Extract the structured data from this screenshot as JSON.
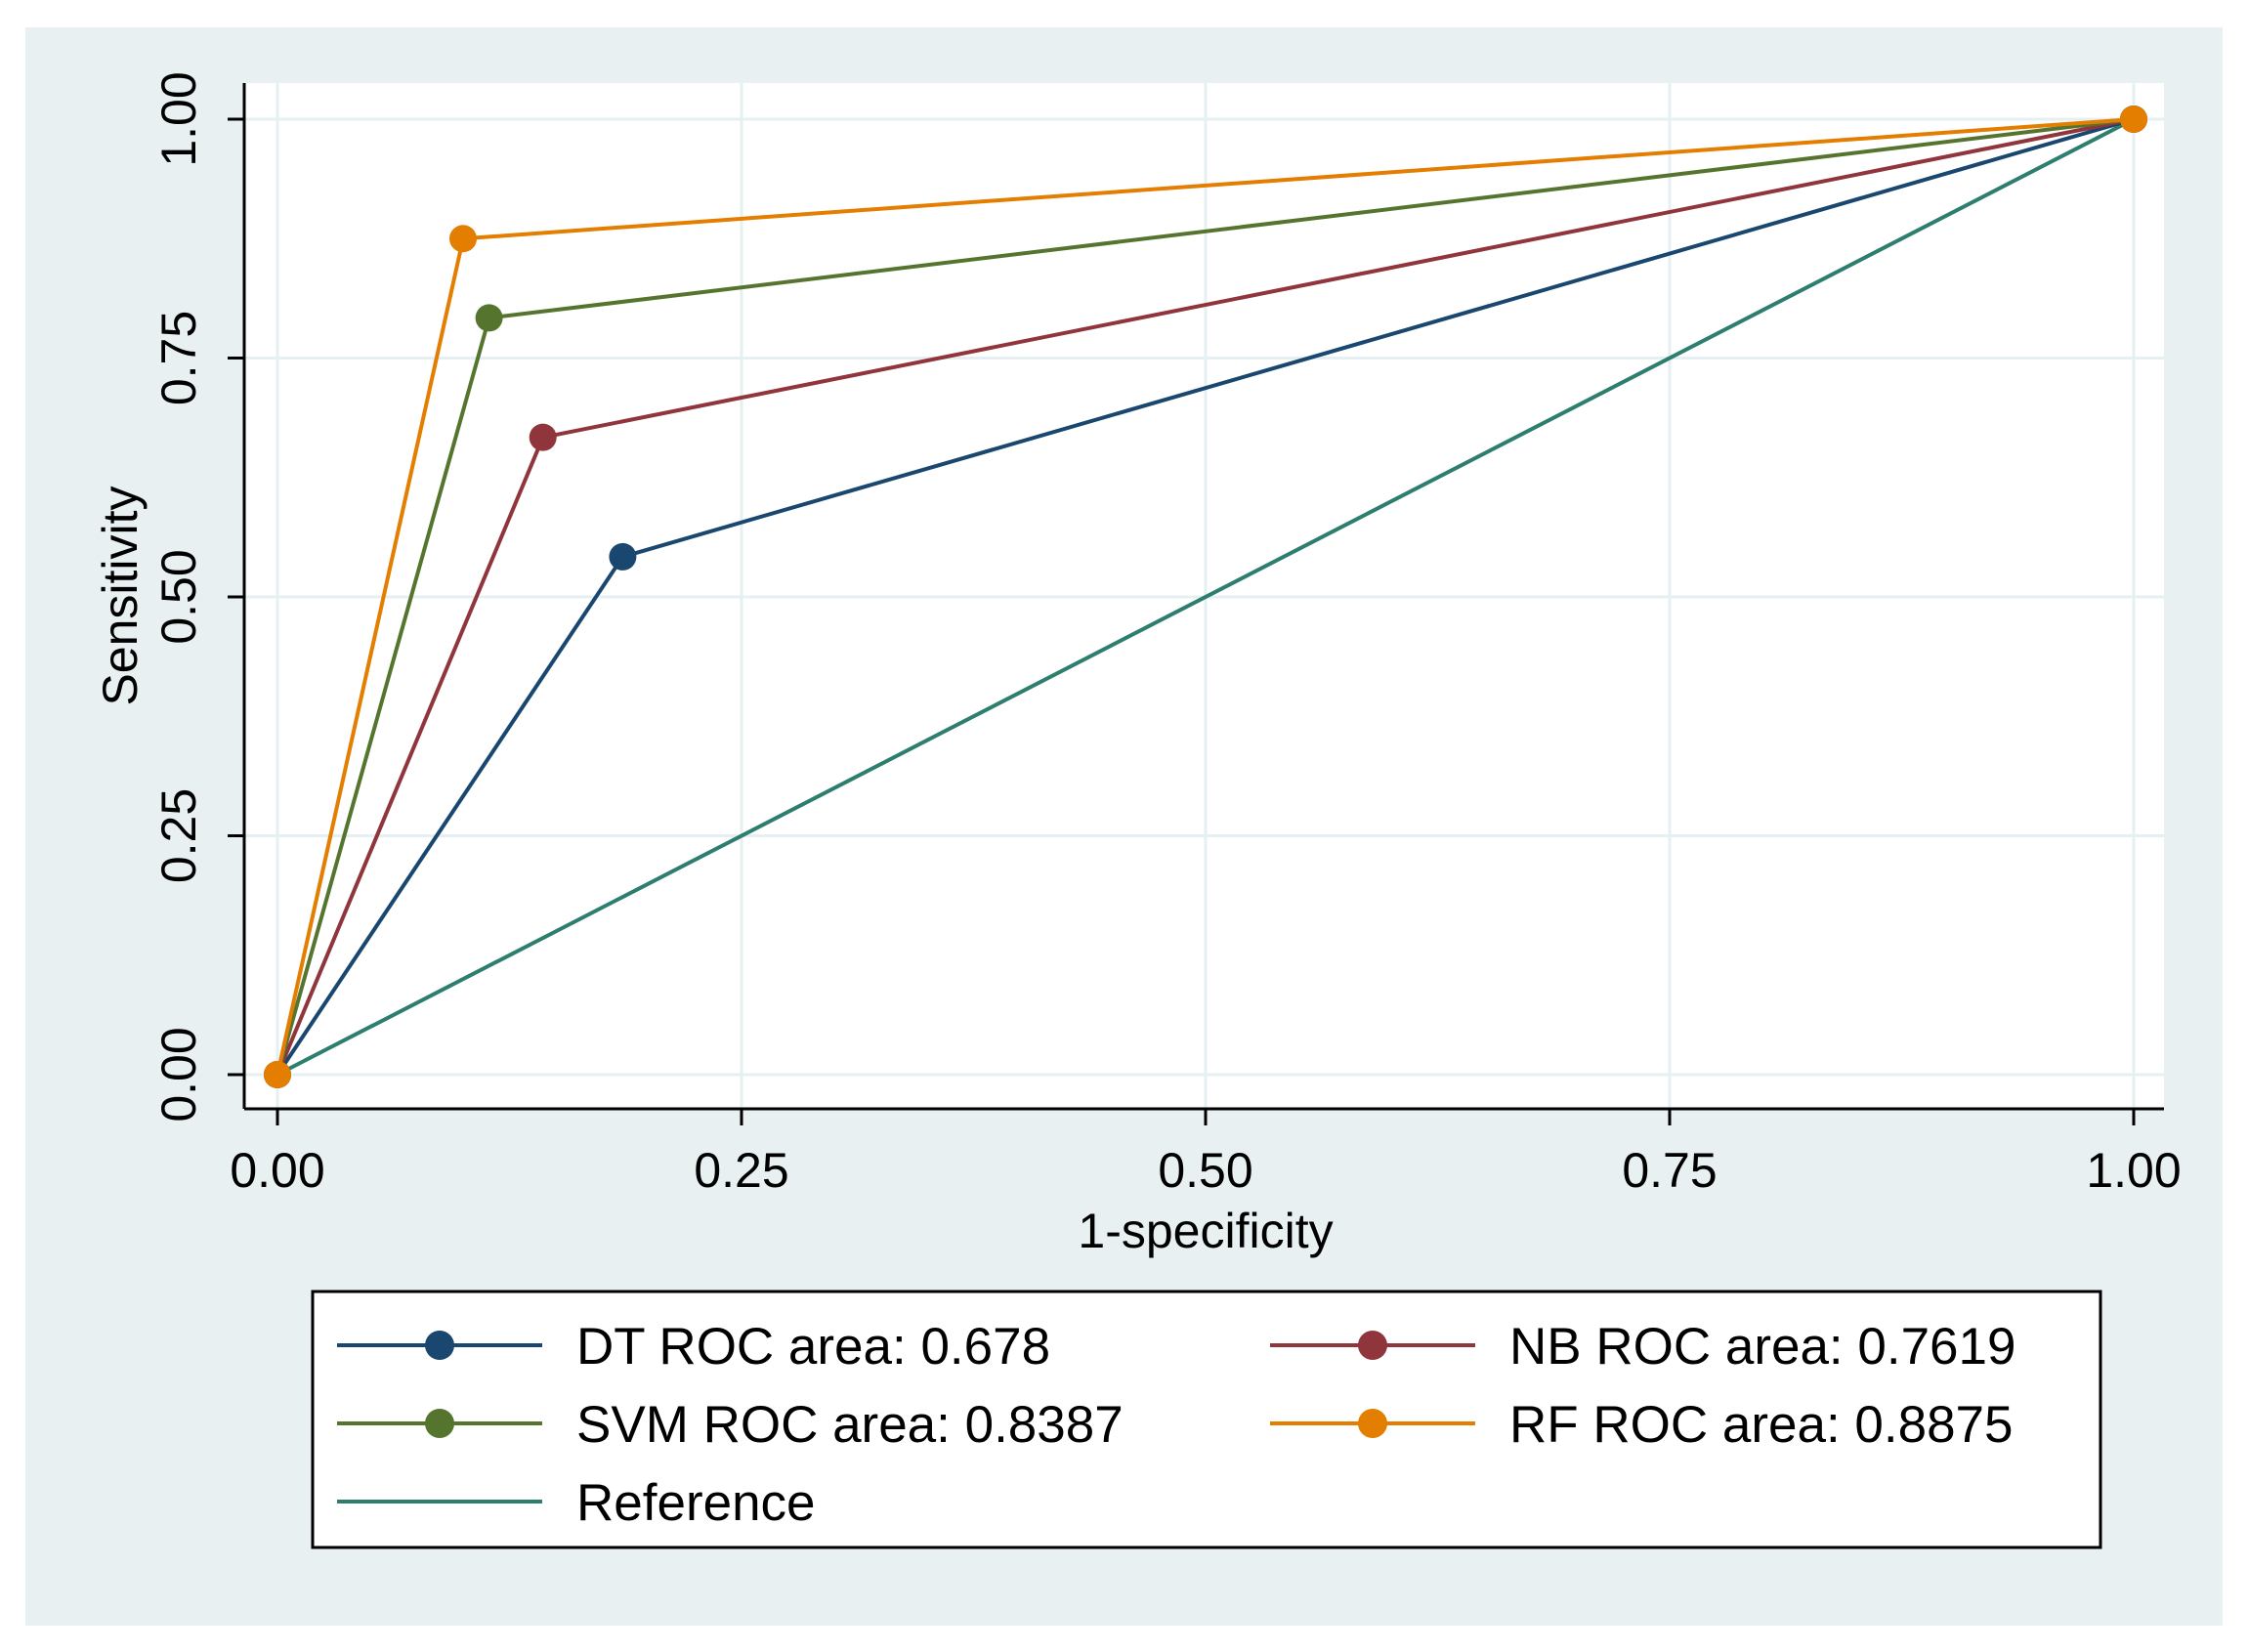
{
  "chart_data": {
    "type": "line",
    "title": "",
    "xlabel": "1-specificity",
    "ylabel": "Sensitivity",
    "xlim": [
      0,
      1
    ],
    "ylim": [
      0,
      1
    ],
    "grid": true,
    "x_ticks": [
      0,
      0.25,
      0.5,
      0.75,
      1
    ],
    "x_tick_labels": [
      "0.00",
      "0.25",
      "0.50",
      "0.75",
      "1.00"
    ],
    "y_ticks": [
      0,
      0.25,
      0.5,
      0.75,
      1
    ],
    "y_tick_labels": [
      "0.00",
      "0.25",
      "0.50",
      "0.75",
      "1.00"
    ],
    "legend_position": "bottom",
    "series": [
      {
        "name": "DT ROC area: 0.678",
        "color": "#1a476f",
        "markers": true,
        "x": [
          0,
          0.186,
          1
        ],
        "y": [
          0,
          0.542,
          1
        ]
      },
      {
        "name": "NB ROC area: 0.7619",
        "color": "#90353b",
        "markers": true,
        "x": [
          0,
          0.143,
          1
        ],
        "y": [
          0,
          0.667,
          1
        ]
      },
      {
        "name": "SVM ROC area: 0.8387",
        "color": "#55752f",
        "markers": true,
        "x": [
          0,
          0.114,
          1
        ],
        "y": [
          0,
          0.792,
          1
        ]
      },
      {
        "name": "RF ROC area: 0.8875",
        "color": "#e37e00",
        "markers": true,
        "x": [
          0,
          0.1,
          1
        ],
        "y": [
          0,
          0.875,
          1
        ]
      },
      {
        "name": "Reference",
        "color": "#2d7e6f",
        "markers": false,
        "x": [
          0,
          1
        ],
        "y": [
          0,
          1
        ]
      }
    ]
  },
  "colors": {
    "outer_background": "#e8f0f2",
    "plot_background": "#ffffff",
    "grid": "#e6eff2"
  }
}
